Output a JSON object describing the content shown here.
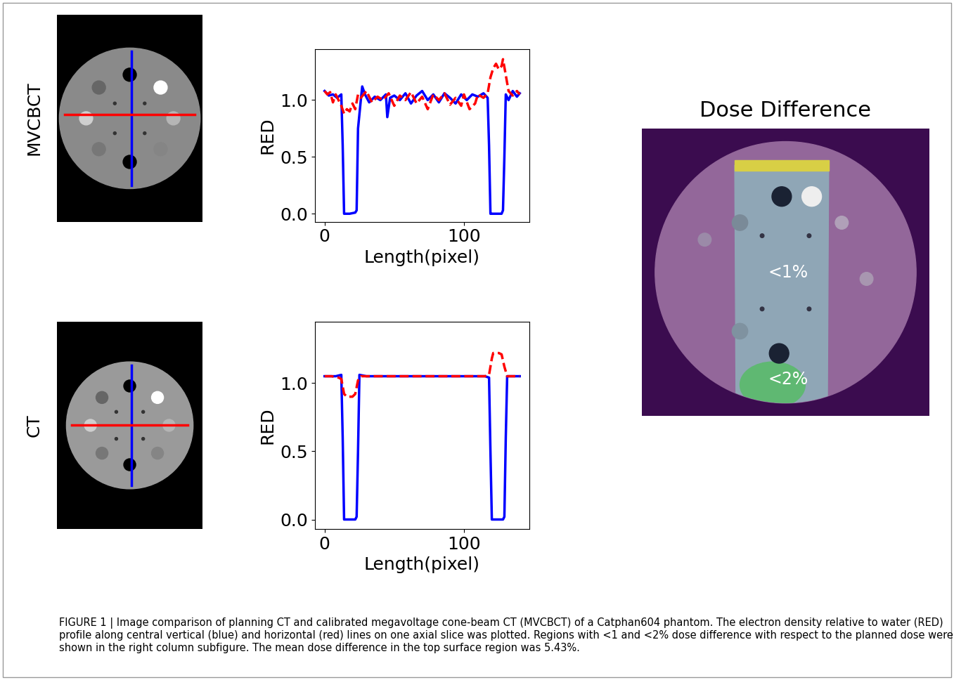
{
  "images": [
    {
      "label": "MVCBCT"
    },
    {
      "label": "CT"
    }
  ],
  "chart_data": [
    {
      "type": "line",
      "ylabel": "RED",
      "xlabel": "Length(pixel)",
      "xlim": [
        -7,
        147
      ],
      "xticks": [
        0,
        100
      ],
      "ylim": [
        -0.07,
        1.45
      ],
      "yticks": [
        {
          "value": 0,
          "label": "0.0"
        },
        0.5,
        {
          "value": 1,
          "label": "1.0"
        }
      ],
      "series": [
        {
          "color": "#0000ff",
          "line_style": "solid",
          "x": [
            0,
            3,
            6,
            9,
            12,
            13,
            14,
            18,
            22,
            23,
            24,
            26,
            27,
            29,
            32,
            36,
            40,
            44,
            45,
            47,
            50,
            54,
            58,
            62,
            66,
            70,
            74,
            78,
            82,
            86,
            90,
            94,
            98,
            102,
            106,
            110,
            114,
            117,
            118,
            119,
            120,
            124,
            127,
            128,
            129,
            130,
            132,
            135,
            138,
            140
          ],
          "values": [
            1.08,
            1.04,
            1.05,
            1.02,
            1.05,
            0.6,
            0.0,
            0.0,
            0.01,
            0.03,
            0.75,
            1.0,
            1.12,
            1.05,
            0.98,
            1.03,
            1.0,
            1.05,
            0.85,
            1.02,
            1.04,
            1.0,
            1.06,
            0.97,
            1.04,
            1.08,
            1.0,
            1.05,
            0.98,
            1.06,
            1.02,
            0.97,
            1.05,
            1.0,
            1.05,
            1.03,
            1.06,
            1.02,
            0.6,
            0.0,
            0.0,
            0.0,
            0.0,
            0.03,
            0.5,
            1.05,
            1.0,
            1.08,
            1.03,
            1.06
          ]
        },
        {
          "color": "#ff0000",
          "line_style": "dashed",
          "x": [
            0,
            2,
            4,
            6,
            8,
            10,
            12,
            14,
            16,
            18,
            20,
            22,
            24,
            26,
            30,
            34,
            38,
            42,
            46,
            50,
            54,
            58,
            62,
            66,
            70,
            74,
            78,
            82,
            86,
            90,
            94,
            98,
            100,
            104,
            108,
            110,
            114,
            117,
            119,
            121,
            123,
            125,
            127,
            128,
            130,
            132,
            135,
            138,
            140
          ],
          "values": [
            1.08,
            1.05,
            1.07,
            0.98,
            1.05,
            1.0,
            0.95,
            0.88,
            0.92,
            0.9,
            0.97,
            0.92,
            1.05,
            1.02,
            1.08,
            0.98,
            1.03,
            1.0,
            1.06,
            0.95,
            1.04,
            1.0,
            1.07,
            0.97,
            1.03,
            0.92,
            1.05,
            1.0,
            1.06,
            0.96,
            1.02,
            0.95,
            1.05,
            0.92,
            0.97,
            1.05,
            1.02,
            1.06,
            1.2,
            1.28,
            1.32,
            1.27,
            1.3,
            1.36,
            1.22,
            1.08,
            1.04,
            1.08,
            1.05
          ]
        }
      ]
    },
    {
      "type": "line",
      "ylabel": "RED",
      "xlabel": "Length(pixel)",
      "xlim": [
        -7,
        147
      ],
      "xticks": [
        0,
        100
      ],
      "ylim": [
        -0.07,
        1.45
      ],
      "yticks": [
        {
          "value": 0,
          "label": "0.0"
        },
        0.5,
        {
          "value": 1,
          "label": "1.0"
        }
      ],
      "series": [
        {
          "color": "#0000ff",
          "line_style": "solid",
          "x": [
            0,
            4,
            8,
            12,
            13,
            14,
            18,
            22,
            23,
            24,
            25,
            30,
            40,
            50,
            60,
            70,
            80,
            90,
            100,
            110,
            115,
            118,
            119,
            120,
            124,
            128,
            129,
            130,
            131,
            135,
            140
          ],
          "values": [
            1.05,
            1.05,
            1.05,
            1.06,
            0.6,
            0.0,
            0.0,
            0.0,
            0.02,
            0.5,
            1.06,
            1.05,
            1.05,
            1.05,
            1.05,
            1.05,
            1.05,
            1.05,
            1.05,
            1.05,
            1.05,
            1.04,
            0.5,
            0.0,
            0.0,
            0.0,
            0.02,
            0.6,
            1.05,
            1.05,
            1.05
          ]
        },
        {
          "color": "#ff0000",
          "line_style": "dashed",
          "x": [
            0,
            5,
            10,
            12,
            14,
            16,
            20,
            22,
            24,
            26,
            30,
            40,
            50,
            60,
            70,
            80,
            90,
            100,
            110,
            115,
            118,
            120,
            121,
            125,
            127,
            129,
            131,
            135,
            140
          ],
          "values": [
            1.05,
            1.05,
            1.04,
            1.03,
            0.92,
            0.9,
            0.9,
            0.92,
            1.02,
            1.05,
            1.05,
            1.05,
            1.05,
            1.05,
            1.05,
            1.05,
            1.05,
            1.05,
            1.05,
            1.05,
            1.06,
            1.18,
            1.22,
            1.22,
            1.21,
            1.12,
            1.05,
            1.05,
            1.05
          ]
        }
      ]
    }
  ],
  "dose_map": {
    "title": "Dose Difference",
    "regions": [
      {
        "label": "<1%",
        "color": "#8fa6b6"
      },
      {
        "label": "<2%",
        "color": "#5fb872"
      }
    ]
  },
  "caption": "FIGURE 1 | Image comparison of planning CT and calibrated megavoltage cone-beam CT (MVCBCT) of a Catphan604 phantom. The electron density relative to water (RED) profile along central vertical (blue) and horizontal (red) lines on one axial slice was plotted. Regions with <1 and <2% dose difference with respect to the planned dose were shown in the right column subfigure. The mean dose difference in the top surface region was 5.43%."
}
